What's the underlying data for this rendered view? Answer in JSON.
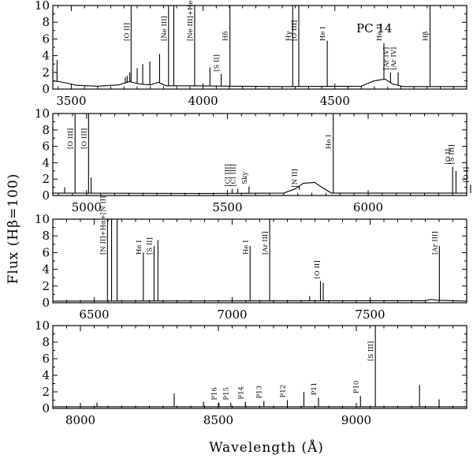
{
  "figure": {
    "object_label": "PC 14",
    "xlabel": "Wavelength (Å)",
    "ylabel": "Flux (Hβ=100)"
  },
  "chart_data": [
    {
      "type": "line",
      "x_range": [
        3430,
        5000
      ],
      "ylim": [
        0,
        10
      ],
      "xticks": [
        3500,
        4000,
        4500
      ],
      "yticks": [
        0,
        2,
        4,
        6,
        8,
        10
      ],
      "continuum": [
        [
          3430,
          1.0
        ],
        [
          3470,
          0.8
        ],
        [
          3520,
          0.45
        ],
        [
          3600,
          0.35
        ],
        [
          3680,
          0.5
        ],
        [
          3720,
          0.9
        ],
        [
          3760,
          0.6
        ],
        [
          3800,
          0.5
        ],
        [
          3830,
          0.8
        ],
        [
          3860,
          0.4
        ],
        [
          3950,
          0.4
        ],
        [
          4100,
          0.35
        ],
        [
          4300,
          0.3
        ],
        [
          4600,
          0.35
        ],
        [
          4650,
          1.0
        ],
        [
          4690,
          1.2
        ],
        [
          4720,
          0.6
        ],
        [
          4760,
          0.3
        ],
        [
          5000,
          0.3
        ]
      ],
      "lines": [
        {
          "x": 3446,
          "h": 3.5
        },
        {
          "x": 3705,
          "h": 1.4
        },
        {
          "x": 3712,
          "h": 1.6
        },
        {
          "x": 3722,
          "h": 2.0
        },
        {
          "x": 3727,
          "h": 10
        },
        {
          "x": 3750,
          "h": 2.5
        },
        {
          "x": 3771,
          "h": 3.0
        },
        {
          "x": 3798,
          "h": 3.3
        },
        {
          "x": 3835,
          "h": 4.2
        },
        {
          "x": 3869,
          "h": 10
        },
        {
          "x": 3889,
          "h": 10
        },
        {
          "x": 3968,
          "h": 10
        },
        {
          "x": 4026,
          "h": 2.6
        },
        {
          "x": 4069,
          "h": 1.8
        },
        {
          "x": 4102,
          "h": 10
        },
        {
          "x": 4340,
          "h": 10
        },
        {
          "x": 4363,
          "h": 10
        },
        {
          "x": 4471,
          "h": 5.8
        },
        {
          "x": 4686,
          "h": 5.5
        },
        {
          "x": 4711,
          "h": 2.0
        },
        {
          "x": 4740,
          "h": 2.0
        },
        {
          "x": 4861,
          "h": 10
        }
      ],
      "labels": [
        {
          "x": 3727,
          "text": "[O II]"
        },
        {
          "x": 3869,
          "text": "[Ne III]"
        },
        {
          "x": 3968,
          "text": "[Ne III]+He+He I"
        },
        {
          "x": 4069,
          "text": "[S II]"
        },
        {
          "x": 4102,
          "text": "Hδ"
        },
        {
          "x": 4340,
          "text": "Hγ"
        },
        {
          "x": 4363,
          "text": "[O III]"
        },
        {
          "x": 4471,
          "text": "He I"
        },
        {
          "x": 4686,
          "text": "He II"
        },
        {
          "x": 4711,
          "text": "[Ar IV]"
        },
        {
          "x": 4740,
          "text": "[Ar IV]"
        },
        {
          "x": 4861,
          "text": "Hβ"
        }
      ]
    },
    {
      "type": "line",
      "x_range": [
        4880,
        6350
      ],
      "ylim": [
        0,
        10
      ],
      "xticks": [
        5000,
        5500,
        6000
      ],
      "yticks": [
        0,
        2,
        4,
        6,
        8,
        10
      ],
      "continuum": [
        [
          4880,
          0.3
        ],
        [
          5400,
          0.25
        ],
        [
          5700,
          0.3
        ],
        [
          5740,
          0.8
        ],
        [
          5770,
          1.5
        ],
        [
          5810,
          1.6
        ],
        [
          5840,
          0.9
        ],
        [
          5870,
          0.3
        ],
        [
          6350,
          0.3
        ]
      ],
      "lines": [
        {
          "x": 4922,
          "h": 1.0
        },
        {
          "x": 4959,
          "h": 10
        },
        {
          "x": 5007,
          "h": 10
        },
        {
          "x": 5016,
          "h": 2.2
        },
        {
          "x": 5876,
          "h": 10
        },
        {
          "x": 5517,
          "h": 0.8
        },
        {
          "x": 5537,
          "h": 0.8
        },
        {
          "x": 5577,
          "h": 1.1
        },
        {
          "x": 5755,
          "h": 0.7
        },
        {
          "x": 6300,
          "h": 3.5
        },
        {
          "x": 6312,
          "h": 3.0
        },
        {
          "x": 6364,
          "h": 1.3
        }
      ],
      "labels": [
        {
          "x": 4959,
          "text": "[O III]"
        },
        {
          "x": 5007,
          "text": "[O III]"
        },
        {
          "x": 5517,
          "text": "[Cl III]"
        },
        {
          "x": 5537,
          "text": "[Cl III]"
        },
        {
          "x": 5577,
          "text": "Sky"
        },
        {
          "x": 5755,
          "text": "[N II]"
        },
        {
          "x": 5876,
          "text": "He I"
        },
        {
          "x": 6300,
          "text": "[O I]"
        },
        {
          "x": 6312,
          "text": "[S III]"
        },
        {
          "x": 6364,
          "text": "[O I]"
        }
      ]
    },
    {
      "type": "line",
      "x_range": [
        6350,
        7850
      ],
      "ylim": [
        0,
        10
      ],
      "xticks": [
        6500,
        7000,
        7500
      ],
      "yticks": [
        0,
        2,
        4,
        6,
        8,
        10
      ],
      "continuum": [
        [
          6350,
          0.2
        ],
        [
          7700,
          0.25
        ],
        [
          7720,
          0.4
        ],
        [
          7740,
          0.3
        ],
        [
          7850,
          0.2
        ]
      ],
      "lines": [
        {
          "x": 6548,
          "h": 10
        },
        {
          "x": 6563,
          "h": 10
        },
        {
          "x": 6583,
          "h": 10
        },
        {
          "x": 6678,
          "h": 6.0
        },
        {
          "x": 6717,
          "h": 6.8
        },
        {
          "x": 6731,
          "h": 7.5
        },
        {
          "x": 7065,
          "h": 6.8
        },
        {
          "x": 7136,
          "h": 10
        },
        {
          "x": 7320,
          "h": 2.6
        },
        {
          "x": 7330,
          "h": 2.4
        },
        {
          "x": 7281,
          "h": 0.8
        },
        {
          "x": 7751,
          "h": 6.8
        }
      ],
      "labels": [
        {
          "x": 6548,
          "text": "[N II]+Hα+[N II]"
        },
        {
          "x": 6678,
          "text": "He I"
        },
        {
          "x": 6717,
          "text": "[S II]"
        },
        {
          "x": 7065,
          "text": "He I"
        },
        {
          "x": 7136,
          "text": "[Ar III]"
        },
        {
          "x": 7325,
          "text": "[O II]"
        },
        {
          "x": 7751,
          "text": "[Ar III]"
        }
      ]
    },
    {
      "type": "line",
      "x_range": [
        7900,
        9400
      ],
      "ylim": [
        0,
        10
      ],
      "xticks": [
        8000,
        8500,
        9000
      ],
      "yticks": [
        0,
        2,
        4,
        6,
        8,
        10
      ],
      "continuum": [
        [
          7900,
          0.2
        ],
        [
          9400,
          0.2
        ]
      ],
      "lines": [
        {
          "x": 8446,
          "h": 0.8
        },
        {
          "x": 8502,
          "h": 0.7
        },
        {
          "x": 8545,
          "h": 0.7
        },
        {
          "x": 8598,
          "h": 0.8
        },
        {
          "x": 8665,
          "h": 0.9
        },
        {
          "x": 8750,
          "h": 1.0
        },
        {
          "x": 8863,
          "h": 1.3
        },
        {
          "x": 9015,
          "h": 1.5
        },
        {
          "x": 9069,
          "h": 10
        },
        {
          "x": 9229,
          "h": 2.8
        },
        {
          "x": 8340,
          "h": 1.8
        },
        {
          "x": 8060,
          "h": 0.7
        },
        {
          "x": 8810,
          "h": 2.0
        },
        {
          "x": 9300,
          "h": 1.1
        }
      ],
      "labels": [
        {
          "x": 8502,
          "text": "P16"
        },
        {
          "x": 8545,
          "text": "P15"
        },
        {
          "x": 8598,
          "text": "P14"
        },
        {
          "x": 8665,
          "text": "P13"
        },
        {
          "x": 8750,
          "text": "P12"
        },
        {
          "x": 8863,
          "text": "P11"
        },
        {
          "x": 9015,
          "text": "P10"
        },
        {
          "x": 9069,
          "text": "[S III]"
        }
      ]
    }
  ]
}
